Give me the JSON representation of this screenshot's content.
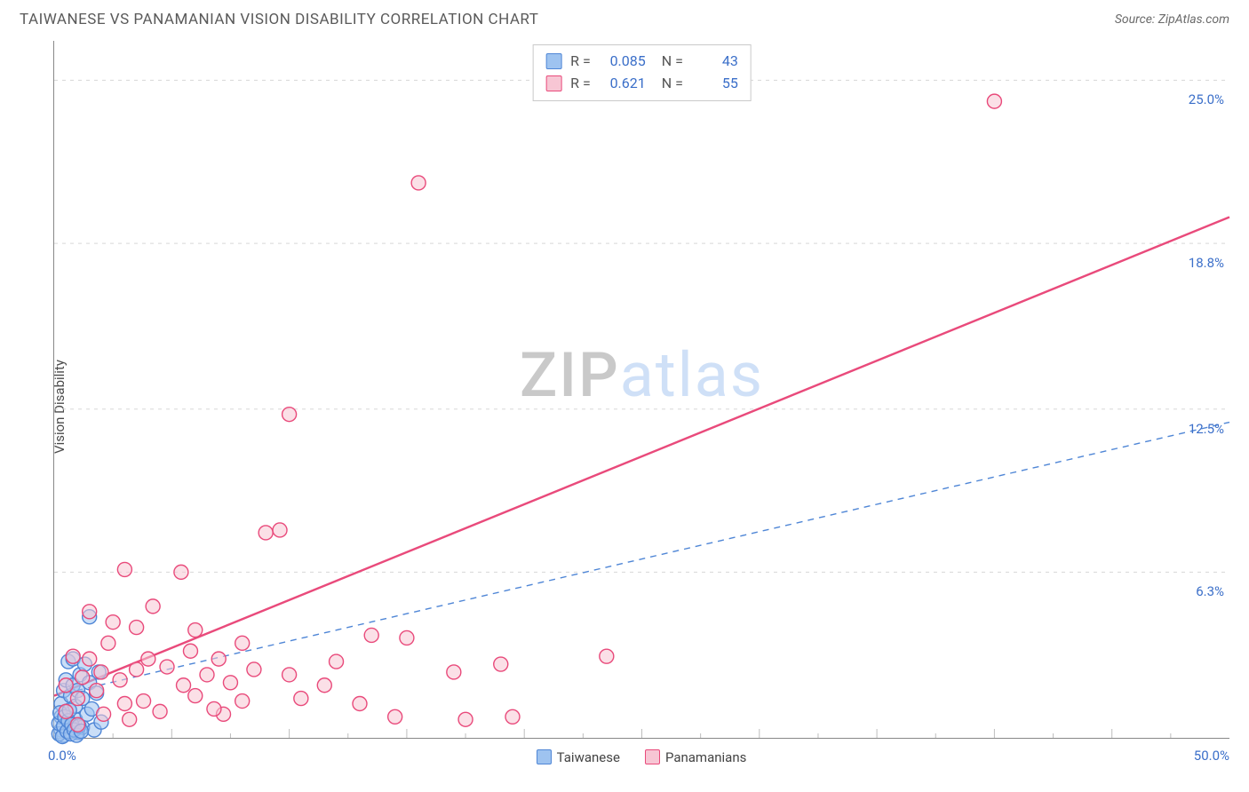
{
  "header": {
    "title": "TAIWANESE VS PANAMANIAN VISION DISABILITY CORRELATION CHART",
    "source": "Source: ZipAtlas.com"
  },
  "chart": {
    "type": "scatter",
    "ylabel": "Vision Disability",
    "background_color": "#ffffff",
    "grid_color": "#d8d8d8",
    "axis_color": "#888888",
    "tick_color": "#bdbdbd",
    "axis_label_color": "#3b6fc9",
    "xlim": [
      0,
      50
    ],
    "ylim": [
      0,
      26.5
    ],
    "x_origin_label": "0.0%",
    "x_max_label": "50.0%",
    "x_ticks": [
      5,
      10,
      15,
      20,
      25,
      30,
      35,
      40,
      45
    ],
    "x_minor_ticks": [
      2.5,
      7.5,
      12.5,
      17.5,
      22.5,
      27.5,
      32.5,
      37.5,
      42.5,
      47.5
    ],
    "y_gridlines": [
      {
        "v": 6.3,
        "label": "6.3%"
      },
      {
        "v": 12.5,
        "label": "12.5%"
      },
      {
        "v": 18.8,
        "label": "18.8%"
      },
      {
        "v": 25.0,
        "label": "25.0%"
      }
    ],
    "watermark": {
      "part1": "ZIP",
      "part2": "atlas"
    },
    "marker_radius": 8,
    "marker_stroke_width": 1.4,
    "line_width_solid": 2.4,
    "line_width_dashed": 1.4,
    "dash_pattern": "7 6",
    "series": [
      {
        "name": "Taiwanese",
        "fill": "#9ec3f0",
        "stroke": "#4f86d6",
        "line_style": "dashed",
        "line_color": "#4f86d6",
        "R": "0.085",
        "N": "43",
        "trend": {
          "x1": 0,
          "y1": 1.6,
          "x2": 50,
          "y2": 12.0
        },
        "points": [
          [
            0.3,
            0.3
          ],
          [
            0.3,
            0.8
          ],
          [
            0.3,
            1.3
          ],
          [
            0.4,
            1.8
          ],
          [
            0.4,
            0.1
          ],
          [
            0.5,
            2.2
          ],
          [
            0.5,
            1.0
          ],
          [
            0.6,
            2.9
          ],
          [
            0.7,
            0.5
          ],
          [
            0.7,
            1.6
          ],
          [
            0.8,
            2.0
          ],
          [
            0.8,
            3.0
          ],
          [
            0.9,
            0.7
          ],
          [
            0.9,
            1.2
          ],
          [
            1.0,
            0.2
          ],
          [
            1.0,
            1.8
          ],
          [
            1.1,
            2.4
          ],
          [
            1.2,
            0.4
          ],
          [
            1.2,
            1.5
          ],
          [
            1.3,
            2.8
          ],
          [
            1.4,
            0.9
          ],
          [
            1.5,
            4.6
          ],
          [
            1.5,
            2.1
          ],
          [
            1.6,
            1.1
          ],
          [
            1.7,
            0.3
          ],
          [
            1.8,
            1.7
          ],
          [
            1.9,
            2.5
          ],
          [
            2.0,
            0.6
          ],
          [
            0.2,
            0.15
          ],
          [
            0.2,
            0.55
          ],
          [
            0.25,
            0.95
          ],
          [
            0.35,
            0.05
          ],
          [
            0.4,
            0.45
          ],
          [
            0.45,
            0.8
          ],
          [
            0.55,
            0.25
          ],
          [
            0.6,
            0.65
          ],
          [
            0.65,
            1.05
          ],
          [
            0.7,
            0.15
          ],
          [
            0.75,
            0.5
          ],
          [
            0.85,
            0.3
          ],
          [
            0.95,
            0.1
          ],
          [
            1.05,
            0.45
          ],
          [
            1.15,
            0.25
          ]
        ]
      },
      {
        "name": "Panamanians",
        "fill": "#f7c6d4",
        "stroke": "#e94a7b",
        "line_style": "solid",
        "line_color": "#e94a7b",
        "R": "0.621",
        "N": "55",
        "trend": {
          "x1": 0,
          "y1": 1.6,
          "x2": 50,
          "y2": 19.8
        },
        "points": [
          [
            0.5,
            1.0
          ],
          [
            0.5,
            2.0
          ],
          [
            0.8,
            3.1
          ],
          [
            1.0,
            0.5
          ],
          [
            1.0,
            1.5
          ],
          [
            1.2,
            2.3
          ],
          [
            1.5,
            4.8
          ],
          [
            1.5,
            3.0
          ],
          [
            1.8,
            1.8
          ],
          [
            2.0,
            2.5
          ],
          [
            2.3,
            3.6
          ],
          [
            2.5,
            4.4
          ],
          [
            2.8,
            2.2
          ],
          [
            3.0,
            1.3
          ],
          [
            3.0,
            6.4
          ],
          [
            3.2,
            0.7
          ],
          [
            3.5,
            2.6
          ],
          [
            3.5,
            4.2
          ],
          [
            4.0,
            3.0
          ],
          [
            4.2,
            5.0
          ],
          [
            4.5,
            1.0
          ],
          [
            5.4,
            6.3
          ],
          [
            5.5,
            2.0
          ],
          [
            5.8,
            3.3
          ],
          [
            6.0,
            1.6
          ],
          [
            6.0,
            4.1
          ],
          [
            6.5,
            2.4
          ],
          [
            7.0,
            3.0
          ],
          [
            7.2,
            0.9
          ],
          [
            7.5,
            2.1
          ],
          [
            8.0,
            1.4
          ],
          [
            8.0,
            3.6
          ],
          [
            8.5,
            2.6
          ],
          [
            9.0,
            7.8
          ],
          [
            9.6,
            7.9
          ],
          [
            10.0,
            2.4
          ],
          [
            10.0,
            12.3
          ],
          [
            10.5,
            1.5
          ],
          [
            11.5,
            2.0
          ],
          [
            12.0,
            2.9
          ],
          [
            13.0,
            1.3
          ],
          [
            13.5,
            3.9
          ],
          [
            14.5,
            0.8
          ],
          [
            15.0,
            3.8
          ],
          [
            15.5,
            21.1
          ],
          [
            17.0,
            2.5
          ],
          [
            17.5,
            0.7
          ],
          [
            19.0,
            2.8
          ],
          [
            19.5,
            0.8
          ],
          [
            23.5,
            3.1
          ],
          [
            40.0,
            24.2
          ],
          [
            2.1,
            0.9
          ],
          [
            3.8,
            1.4
          ],
          [
            4.8,
            2.7
          ],
          [
            6.8,
            1.1
          ]
        ]
      }
    ],
    "bottom_legend": [
      {
        "label": "Taiwanese",
        "fill": "#9ec3f0",
        "stroke": "#4f86d6"
      },
      {
        "label": "Panamanians",
        "fill": "#f7c6d4",
        "stroke": "#e94a7b"
      }
    ]
  }
}
